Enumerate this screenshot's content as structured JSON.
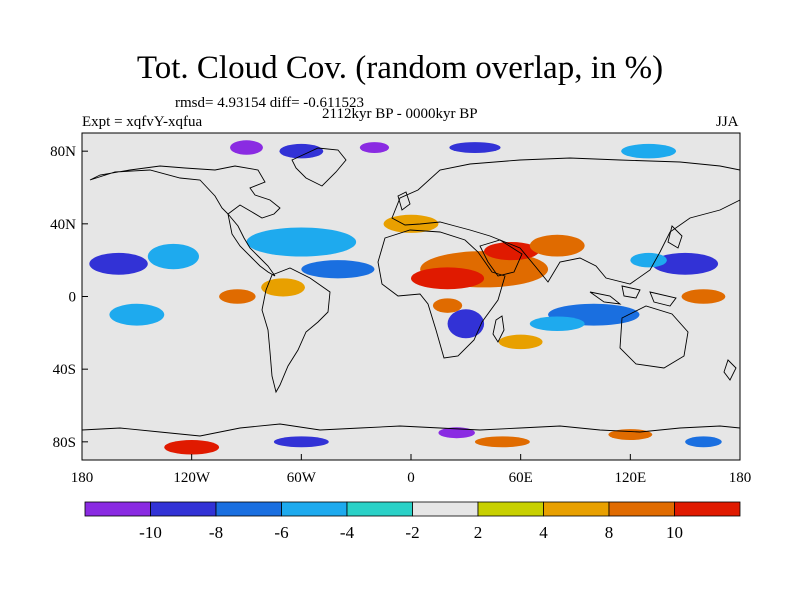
{
  "title": "Tot. Cloud Cov. (random overlap, in %)",
  "stats": "rmsd= 4.93154 diff= -0.611523",
  "period": "2112kyr BP - 0000kyr BP",
  "experiment": "Expt = xqfvY-xqfua",
  "season": "JJA",
  "map": {
    "lon_range": [
      -180,
      180
    ],
    "lat_range": [
      -90,
      90
    ],
    "x_ticks": [
      {
        "lon": -180,
        "label": "180"
      },
      {
        "lon": -120,
        "label": "120W"
      },
      {
        "lon": -60,
        "label": "60W"
      },
      {
        "lon": 0,
        "label": "0"
      },
      {
        "lon": 60,
        "label": "60E"
      },
      {
        "lon": 120,
        "label": "120E"
      },
      {
        "lon": 180,
        "label": "180"
      }
    ],
    "y_ticks": [
      {
        "lat": 80,
        "label": "80N"
      },
      {
        "lat": 40,
        "label": "40N"
      },
      {
        "lat": 0,
        "label": "0"
      },
      {
        "lat": -40,
        "label": "40S"
      },
      {
        "lat": -80,
        "label": "80S"
      }
    ],
    "background_color": "#e6e6e6"
  },
  "colorbar": {
    "colors": [
      "#8a2be2",
      "#3232d6",
      "#1a6fe0",
      "#1eaaee",
      "#2ad1c7",
      "#e6e6e6",
      "#c8d000",
      "#e8a000",
      "#e06b00",
      "#e01a00"
    ],
    "labels": [
      "-10",
      "-8",
      "-6",
      "-4",
      "-2",
      "2",
      "4",
      "8",
      "10"
    ]
  },
  "anomaly_regions": [
    {
      "lon": -90,
      "lat": 82,
      "rx": 9,
      "ry": 4,
      "level": "-10"
    },
    {
      "lon": -60,
      "lat": 80,
      "rx": 12,
      "ry": 4,
      "level": "-8"
    },
    {
      "lon": -20,
      "lat": 82,
      "rx": 8,
      "ry": 3,
      "level": "-10"
    },
    {
      "lon": 35,
      "lat": 82,
      "rx": 14,
      "ry": 3,
      "level": "-8"
    },
    {
      "lon": 130,
      "lat": 80,
      "rx": 15,
      "ry": 4,
      "level": "-4"
    },
    {
      "lon": -160,
      "lat": 18,
      "rx": 16,
      "ry": 6,
      "level": "-8"
    },
    {
      "lon": -130,
      "lat": 22,
      "rx": 14,
      "ry": 7,
      "level": "-4"
    },
    {
      "lon": -60,
      "lat": 30,
      "rx": 30,
      "ry": 8,
      "level": "-4"
    },
    {
      "lon": -40,
      "lat": 15,
      "rx": 20,
      "ry": 5,
      "level": "-6"
    },
    {
      "lon": 40,
      "lat": 15,
      "rx": 35,
      "ry": 10,
      "level": "8"
    },
    {
      "lon": 20,
      "lat": 10,
      "rx": 20,
      "ry": 6,
      "level": "10"
    },
    {
      "lon": 55,
      "lat": 25,
      "rx": 15,
      "ry": 5,
      "level": "10"
    },
    {
      "lon": 80,
      "lat": 28,
      "rx": 15,
      "ry": 6,
      "level": "8"
    },
    {
      "lon": 0,
      "lat": 40,
      "rx": 15,
      "ry": 5,
      "level": "4"
    },
    {
      "lon": 150,
      "lat": 18,
      "rx": 18,
      "ry": 6,
      "level": "-8"
    },
    {
      "lon": 130,
      "lat": 20,
      "rx": 10,
      "ry": 4,
      "level": "-4"
    },
    {
      "lon": 160,
      "lat": 0,
      "rx": 12,
      "ry": 4,
      "level": "8"
    },
    {
      "lon": 100,
      "lat": -10,
      "rx": 25,
      "ry": 6,
      "level": "-6"
    },
    {
      "lon": 80,
      "lat": -15,
      "rx": 15,
      "ry": 4,
      "level": "-4"
    },
    {
      "lon": 30,
      "lat": -15,
      "rx": 10,
      "ry": 8,
      "level": "-8"
    },
    {
      "lon": 20,
      "lat": -5,
      "rx": 8,
      "ry": 4,
      "level": "8"
    },
    {
      "lon": -150,
      "lat": -10,
      "rx": 15,
      "ry": 6,
      "level": "-4"
    },
    {
      "lon": -70,
      "lat": 5,
      "rx": 12,
      "ry": 5,
      "level": "4"
    },
    {
      "lon": -95,
      "lat": 0,
      "rx": 10,
      "ry": 4,
      "level": "8"
    },
    {
      "lon": 60,
      "lat": -25,
      "rx": 12,
      "ry": 4,
      "level": "4"
    },
    {
      "lon": -120,
      "lat": -83,
      "rx": 15,
      "ry": 4,
      "level": "10"
    },
    {
      "lon": 25,
      "lat": -75,
      "rx": 10,
      "ry": 3,
      "level": "-10"
    },
    {
      "lon": 50,
      "lat": -80,
      "rx": 15,
      "ry": 3,
      "level": "8"
    },
    {
      "lon": 120,
      "lat": -76,
      "rx": 12,
      "ry": 3,
      "level": "8"
    },
    {
      "lon": -60,
      "lat": -80,
      "rx": 15,
      "ry": 3,
      "level": "-8"
    },
    {
      "lon": 160,
      "lat": -80,
      "rx": 10,
      "ry": 3,
      "level": "-6"
    }
  ]
}
